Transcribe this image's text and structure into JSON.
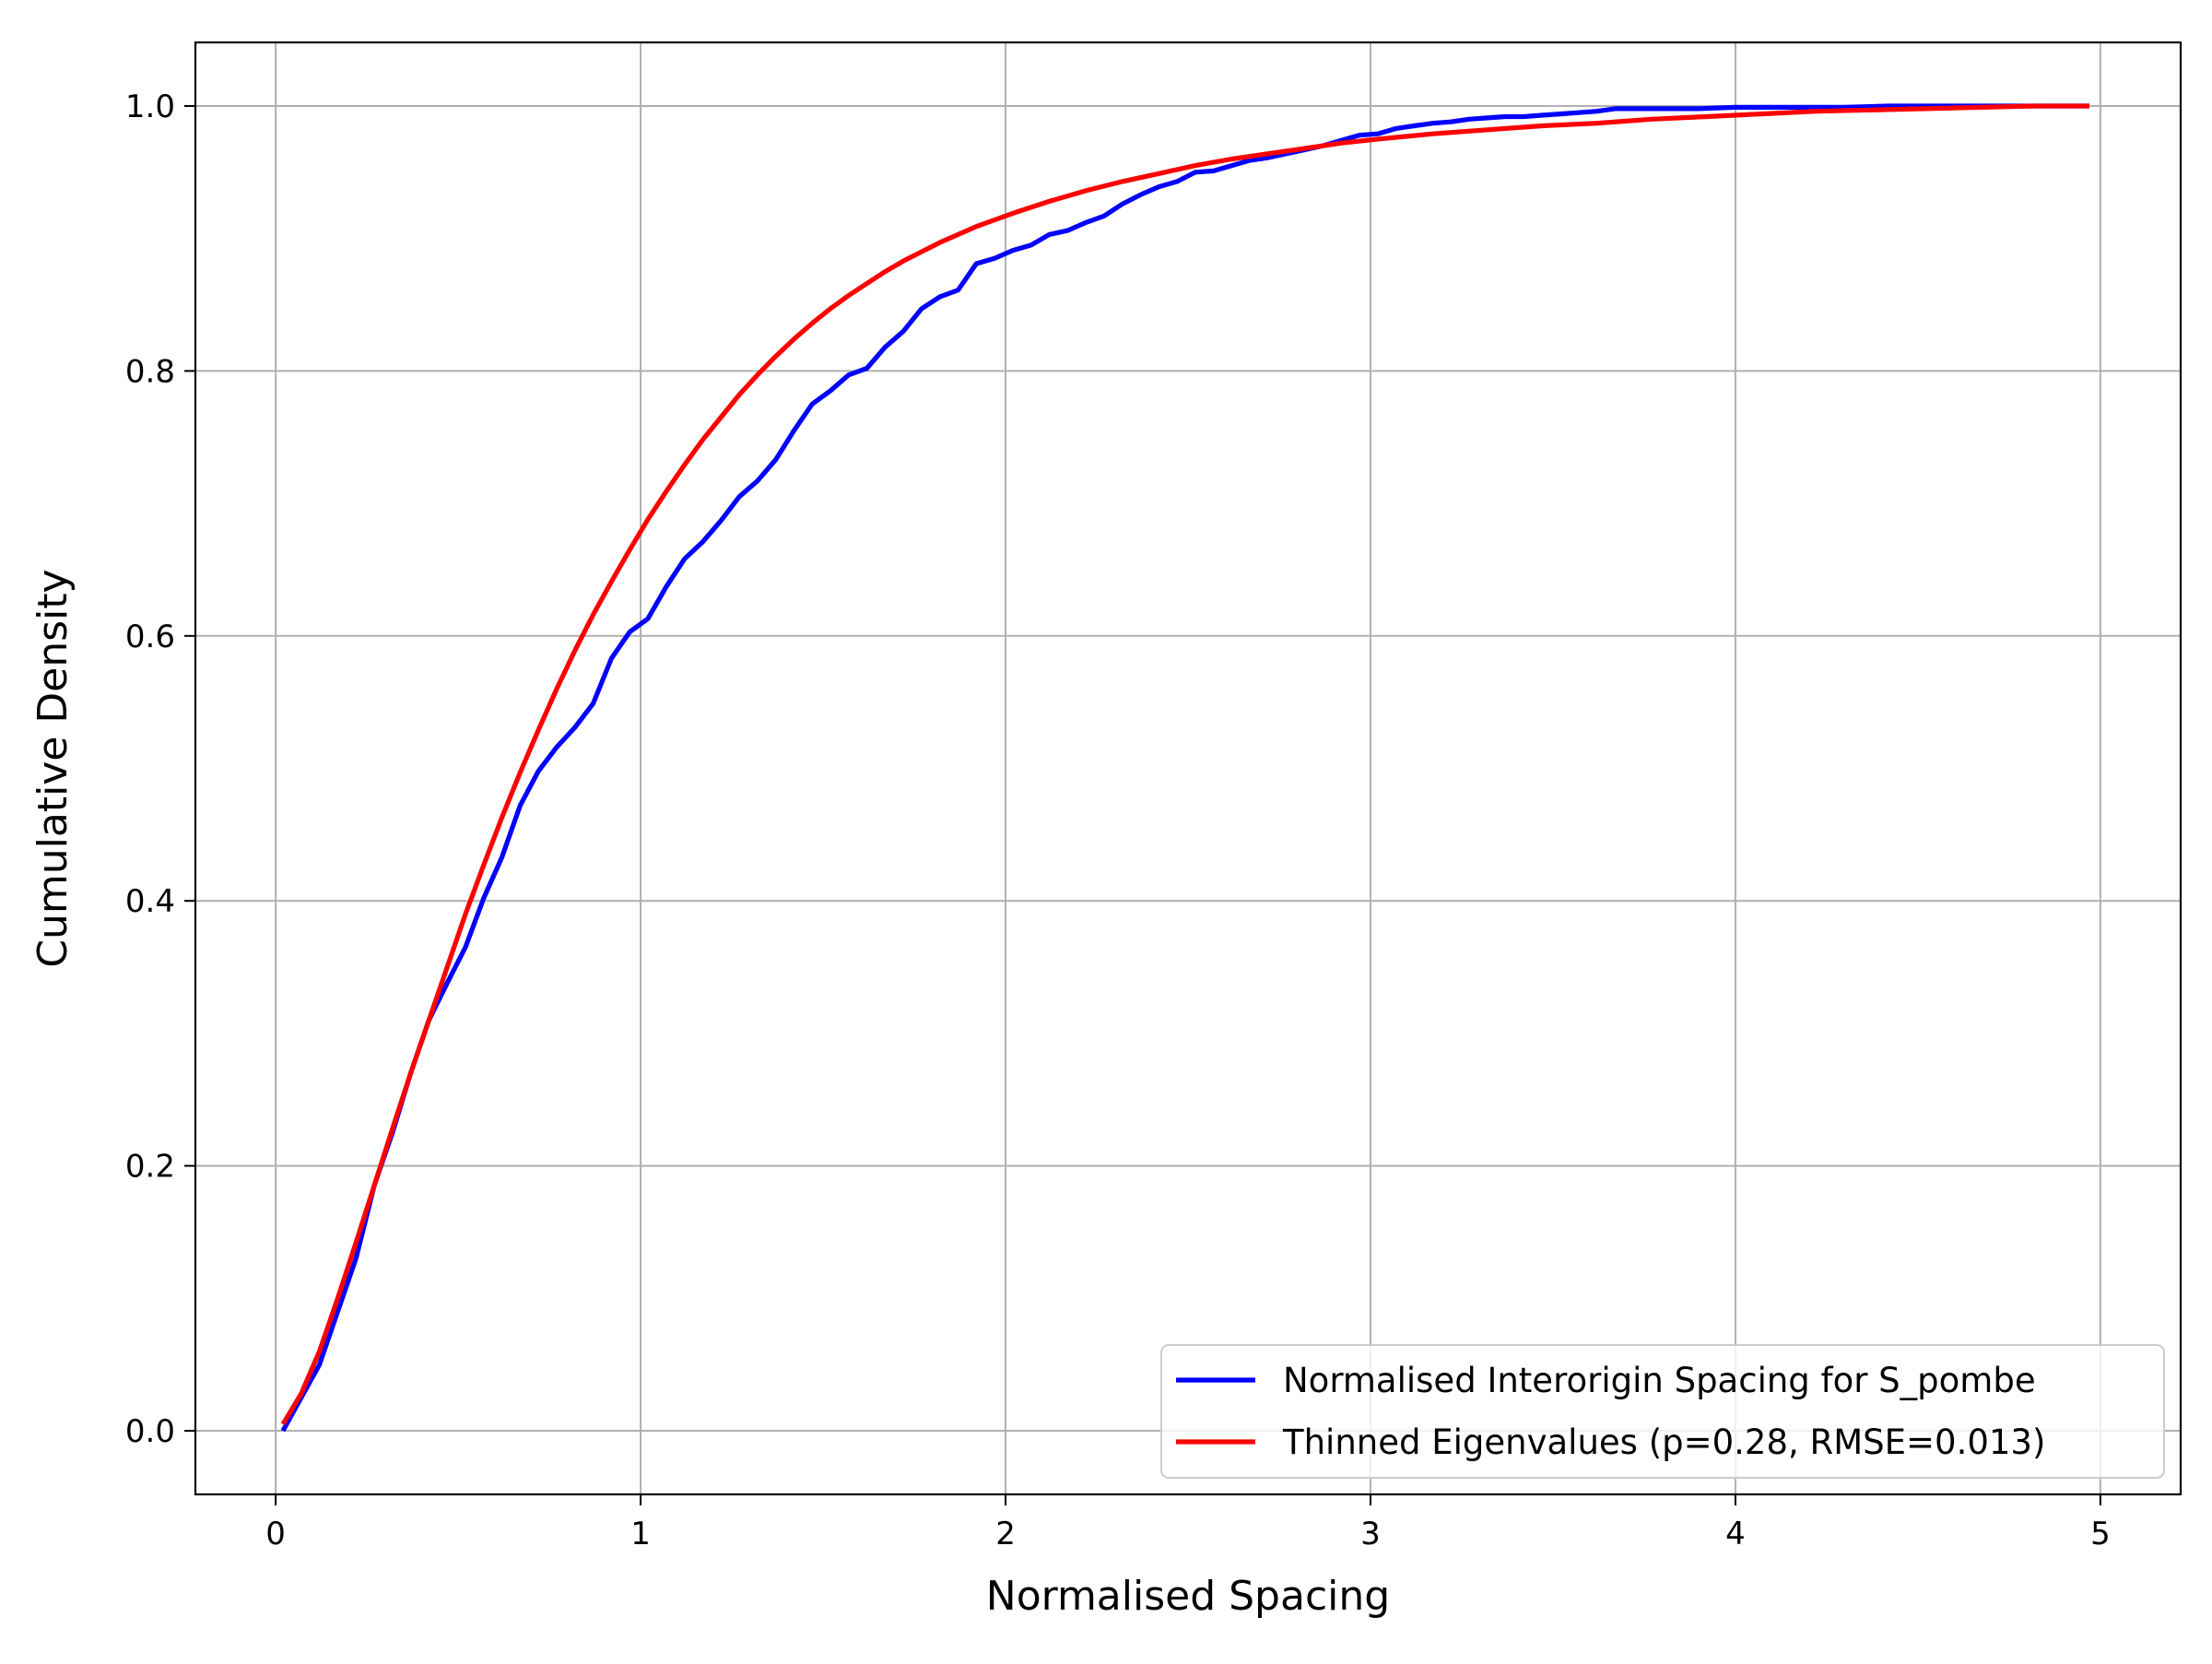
{
  "chart_data": {
    "type": "line",
    "xlabel": "Normalised Spacing",
    "ylabel": "Cumulative Density",
    "xlim": [
      -0.22,
      5.22
    ],
    "ylim": [
      -0.048,
      1.048
    ],
    "xticks": [
      0,
      1,
      2,
      3,
      4,
      5
    ],
    "xtick_labels": [
      "0",
      "1",
      "2",
      "3",
      "4",
      "5"
    ],
    "yticks": [
      0.0,
      0.2,
      0.4,
      0.6,
      0.8,
      1.0
    ],
    "ytick_labels": [
      "0.0",
      "0.2",
      "0.4",
      "0.6",
      "0.8",
      "1.0"
    ],
    "grid": true,
    "legend_position": "lower-right",
    "series": [
      {
        "name": "Normalised Interorigin Spacing for S_pombe",
        "color": "#0000ff",
        "x": [
          0.02,
          0.07,
          0.12,
          0.17,
          0.22,
          0.27,
          0.32,
          0.37,
          0.42,
          0.47,
          0.52,
          0.57,
          0.62,
          0.67,
          0.72,
          0.77,
          0.82,
          0.87,
          0.92,
          0.97,
          1.02,
          1.07,
          1.12,
          1.17,
          1.22,
          1.27,
          1.32,
          1.37,
          1.42,
          1.47,
          1.52,
          1.57,
          1.62,
          1.67,
          1.72,
          1.77,
          1.82,
          1.87,
          1.92,
          1.97,
          2.02,
          2.07,
          2.12,
          2.17,
          2.22,
          2.27,
          2.32,
          2.37,
          2.42,
          2.47,
          2.52,
          2.57,
          2.62,
          2.67,
          2.72,
          2.77,
          2.82,
          2.87,
          2.92,
          2.97,
          3.02,
          3.07,
          3.12,
          3.17,
          3.22,
          3.27,
          3.32,
          3.37,
          3.42,
          3.47,
          3.52,
          3.57,
          3.62,
          3.67,
          3.72,
          3.8,
          3.9,
          4.0,
          4.1,
          4.2,
          4.3,
          4.42,
          4.5,
          4.6,
          4.7,
          4.8,
          4.9,
          4.97
        ],
        "y": [
          0.0,
          0.025,
          0.05,
          0.09,
          0.13,
          0.185,
          0.225,
          0.27,
          0.31,
          0.338,
          0.365,
          0.402,
          0.433,
          0.472,
          0.498,
          0.516,
          0.531,
          0.549,
          0.583,
          0.603,
          0.613,
          0.637,
          0.658,
          0.671,
          0.687,
          0.705,
          0.717,
          0.733,
          0.755,
          0.775,
          0.785,
          0.797,
          0.802,
          0.818,
          0.83,
          0.847,
          0.856,
          0.861,
          0.881,
          0.885,
          0.891,
          0.895,
          0.903,
          0.906,
          0.912,
          0.917,
          0.926,
          0.933,
          0.939,
          0.943,
          0.95,
          0.951,
          0.955,
          0.959,
          0.961,
          0.964,
          0.967,
          0.97,
          0.974,
          0.978,
          0.979,
          0.983,
          0.985,
          0.987,
          0.988,
          0.99,
          0.991,
          0.992,
          0.992,
          0.993,
          0.994,
          0.995,
          0.996,
          0.998,
          0.998,
          0.998,
          0.998,
          0.999,
          0.999,
          0.999,
          0.999,
          1.0,
          1.0,
          1.0,
          1.0,
          1.0,
          1.0,
          1.0
        ]
      },
      {
        "name": "Thinned Eigenvalues (p=0.28, RMSE=0.013)",
        "color": "#ff0000",
        "x": [
          0.02,
          0.07,
          0.12,
          0.17,
          0.22,
          0.27,
          0.32,
          0.37,
          0.42,
          0.47,
          0.52,
          0.57,
          0.62,
          0.67,
          0.72,
          0.77,
          0.82,
          0.87,
          0.92,
          0.97,
          1.02,
          1.07,
          1.12,
          1.17,
          1.22,
          1.27,
          1.32,
          1.37,
          1.42,
          1.47,
          1.52,
          1.57,
          1.62,
          1.67,
          1.72,
          1.77,
          1.82,
          1.87,
          1.92,
          1.97,
          2.02,
          2.12,
          2.22,
          2.32,
          2.42,
          2.52,
          2.62,
          2.72,
          2.82,
          2.92,
          3.02,
          3.17,
          3.32,
          3.47,
          3.62,
          3.77,
          3.92,
          4.07,
          4.22,
          4.37,
          4.52,
          4.67,
          4.82,
          4.97
        ],
        "y": [
          0.005,
          0.028,
          0.06,
          0.1,
          0.142,
          0.185,
          0.228,
          0.27,
          0.31,
          0.35,
          0.39,
          0.427,
          0.463,
          0.497,
          0.529,
          0.56,
          0.589,
          0.616,
          0.641,
          0.665,
          0.688,
          0.709,
          0.729,
          0.748,
          0.765,
          0.782,
          0.797,
          0.811,
          0.824,
          0.836,
          0.847,
          0.857,
          0.866,
          0.875,
          0.883,
          0.89,
          0.897,
          0.903,
          0.909,
          0.914,
          0.919,
          0.928,
          0.936,
          0.943,
          0.949,
          0.955,
          0.96,
          0.964,
          0.968,
          0.972,
          0.975,
          0.979,
          0.982,
          0.985,
          0.987,
          0.99,
          0.992,
          0.994,
          0.996,
          0.997,
          0.998,
          0.999,
          1.0,
          1.0
        ]
      }
    ]
  }
}
